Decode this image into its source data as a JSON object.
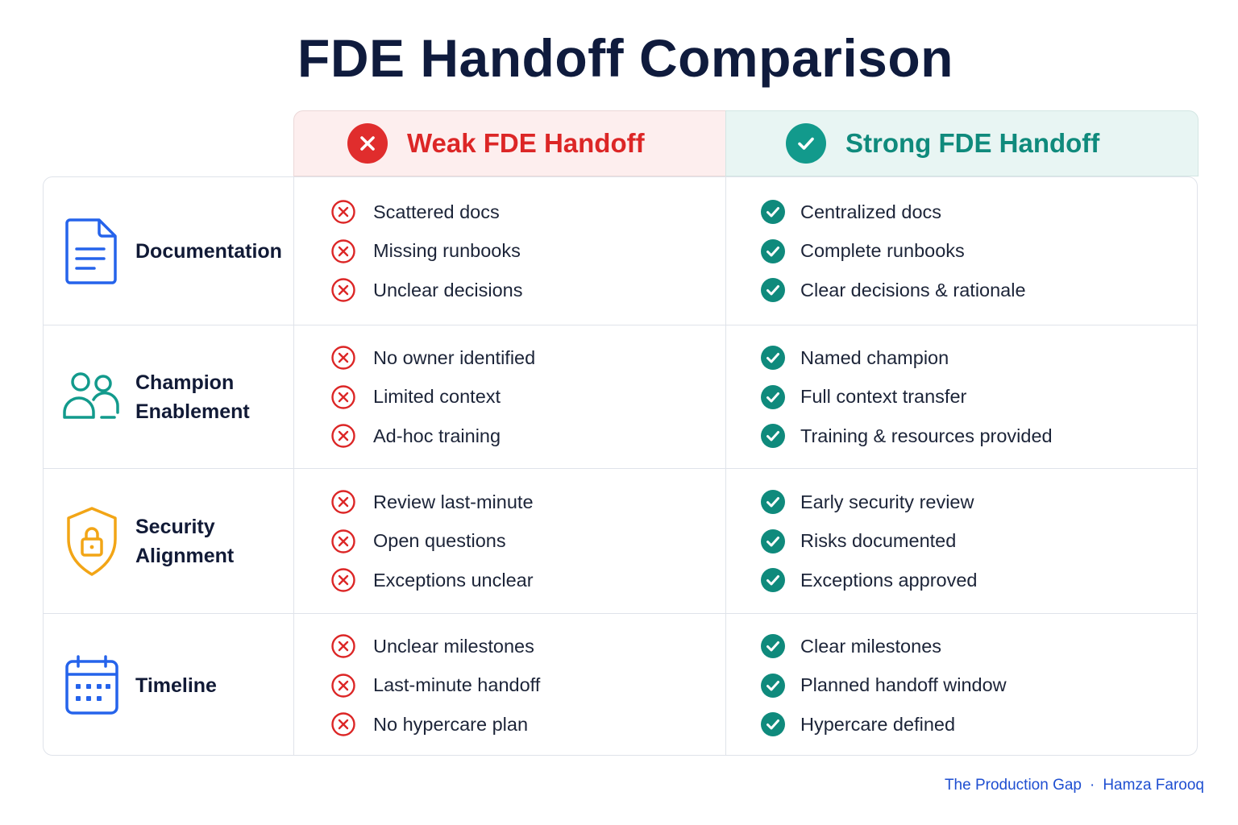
{
  "title": "FDE Handoff Comparison",
  "columns": {
    "weak": {
      "label": "Weak FDE Handoff",
      "icon": "x-circle-icon",
      "color": "#dc2626"
    },
    "strong": {
      "label": "Strong FDE Handoff",
      "icon": "check-circle-icon",
      "color": "#0f8a7c"
    }
  },
  "rows": [
    {
      "category": "Documentation",
      "icon": "document-icon",
      "weak": [
        "Scattered docs",
        "Missing runbooks",
        "Unclear decisions"
      ],
      "strong": [
        "Centralized docs",
        "Complete runbooks",
        "Clear decisions & rationale"
      ]
    },
    {
      "category": "Champion Enablement",
      "icon": "users-icon",
      "weak": [
        "No owner identified",
        "Limited context",
        "Ad-hoc training"
      ],
      "strong": [
        "Named champion",
        "Full context transfer",
        "Training & resources provided"
      ]
    },
    {
      "category": "Security Alignment",
      "icon": "shield-lock-icon",
      "weak": [
        "Review last-minute",
        "Open questions",
        "Exceptions unclear"
      ],
      "strong": [
        "Early security review",
        "Risks documented",
        "Exceptions approved"
      ]
    },
    {
      "category": "Timeline",
      "icon": "calendar-icon",
      "weak": [
        "Unclear milestones",
        "Last-minute handoff",
        "No hypercare plan"
      ],
      "strong": [
        "Clear milestones",
        "Planned handoff window",
        "Hypercare defined"
      ]
    }
  ],
  "footer": {
    "publication": "The Production Gap",
    "separator": "·",
    "author": "Hamza Farooq"
  }
}
